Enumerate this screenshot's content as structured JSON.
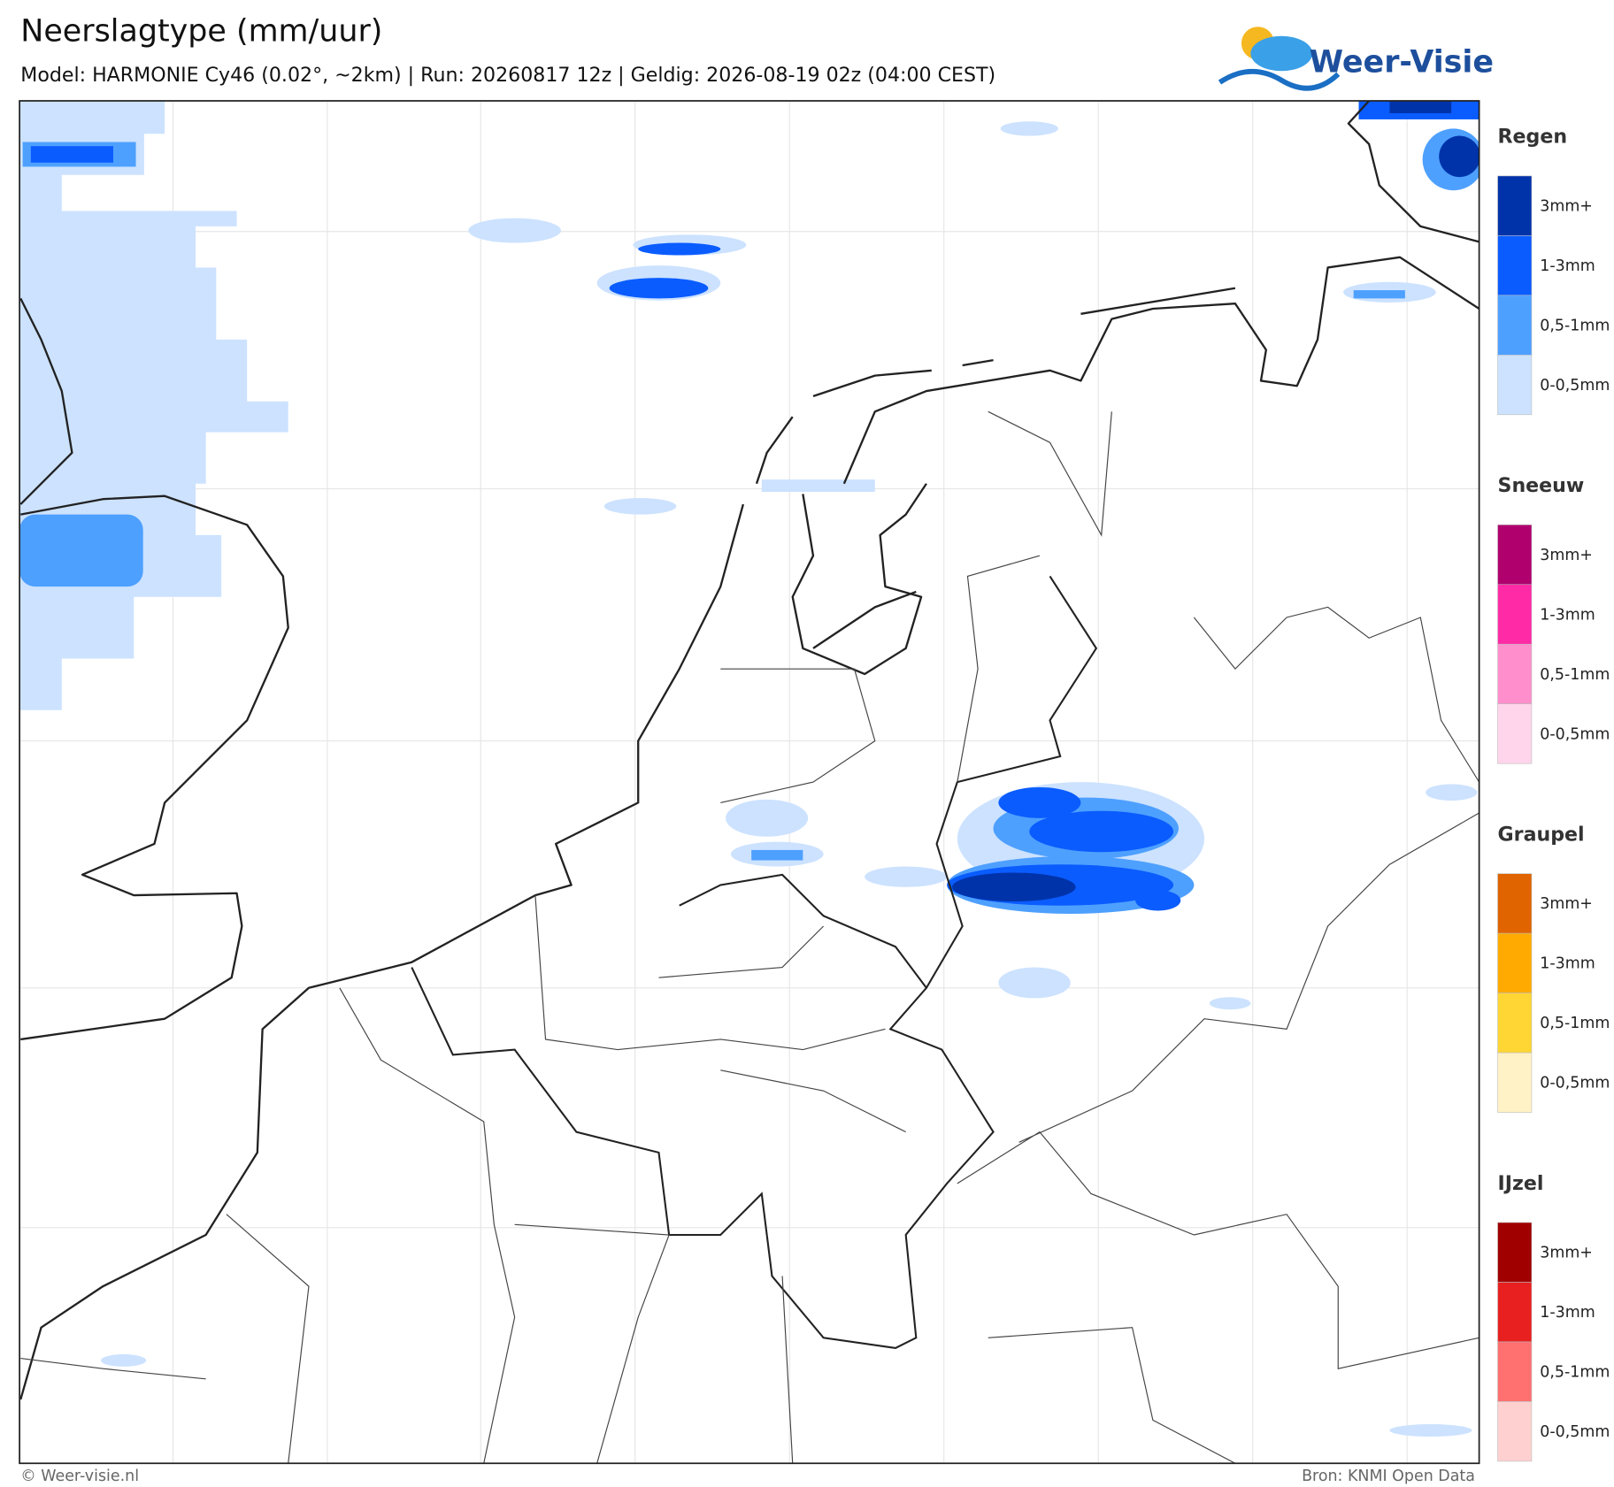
{
  "header": {
    "title": "Neerslagtype (mm/uur)",
    "subtitle": "Model: HARMONIE Cy46 (0.02°, ~2km)  |  Run: 20260817 12z  |  Geldig: 2026-08-19 02z (04:00 CEST)"
  },
  "logo": {
    "text": "Weer-Visie"
  },
  "legend": {
    "sections": [
      {
        "title": "Regen",
        "items": [
          {
            "label": "3mm+",
            "color": "#0033aa"
          },
          {
            "label": "1-3mm",
            "color": "#0a5cff"
          },
          {
            "label": "0,5-1mm",
            "color": "#4ea0ff"
          },
          {
            "label": "0-0,5mm",
            "color": "#cce2ff"
          }
        ]
      },
      {
        "title": "Sneeuw",
        "items": [
          {
            "label": "3mm+",
            "color": "#b0006e"
          },
          {
            "label": "1-3mm",
            "color": "#ff2aa6"
          },
          {
            "label": "0,5-1mm",
            "color": "#ff8fcc"
          },
          {
            "label": "0-0,5mm",
            "color": "#ffd5ec"
          }
        ]
      },
      {
        "title": "Graupel",
        "items": [
          {
            "label": "3mm+",
            "color": "#e06400"
          },
          {
            "label": "1-3mm",
            "color": "#ffaa00"
          },
          {
            "label": "0,5-1mm",
            "color": "#ffd633"
          },
          {
            "label": "0-0,5mm",
            "color": "#fff2c6"
          }
        ]
      },
      {
        "title": "IJzel",
        "items": [
          {
            "label": "3mm+",
            "color": "#a00000"
          },
          {
            "label": "1-3mm",
            "color": "#e82020"
          },
          {
            "label": "0,5-1mm",
            "color": "#ff7070"
          },
          {
            "label": "0-0,5mm",
            "color": "#ffd0d0"
          }
        ]
      }
    ]
  },
  "footer": {
    "left": "© Weer-visie.nl",
    "right": "Bron: KNMI Open Data"
  }
}
